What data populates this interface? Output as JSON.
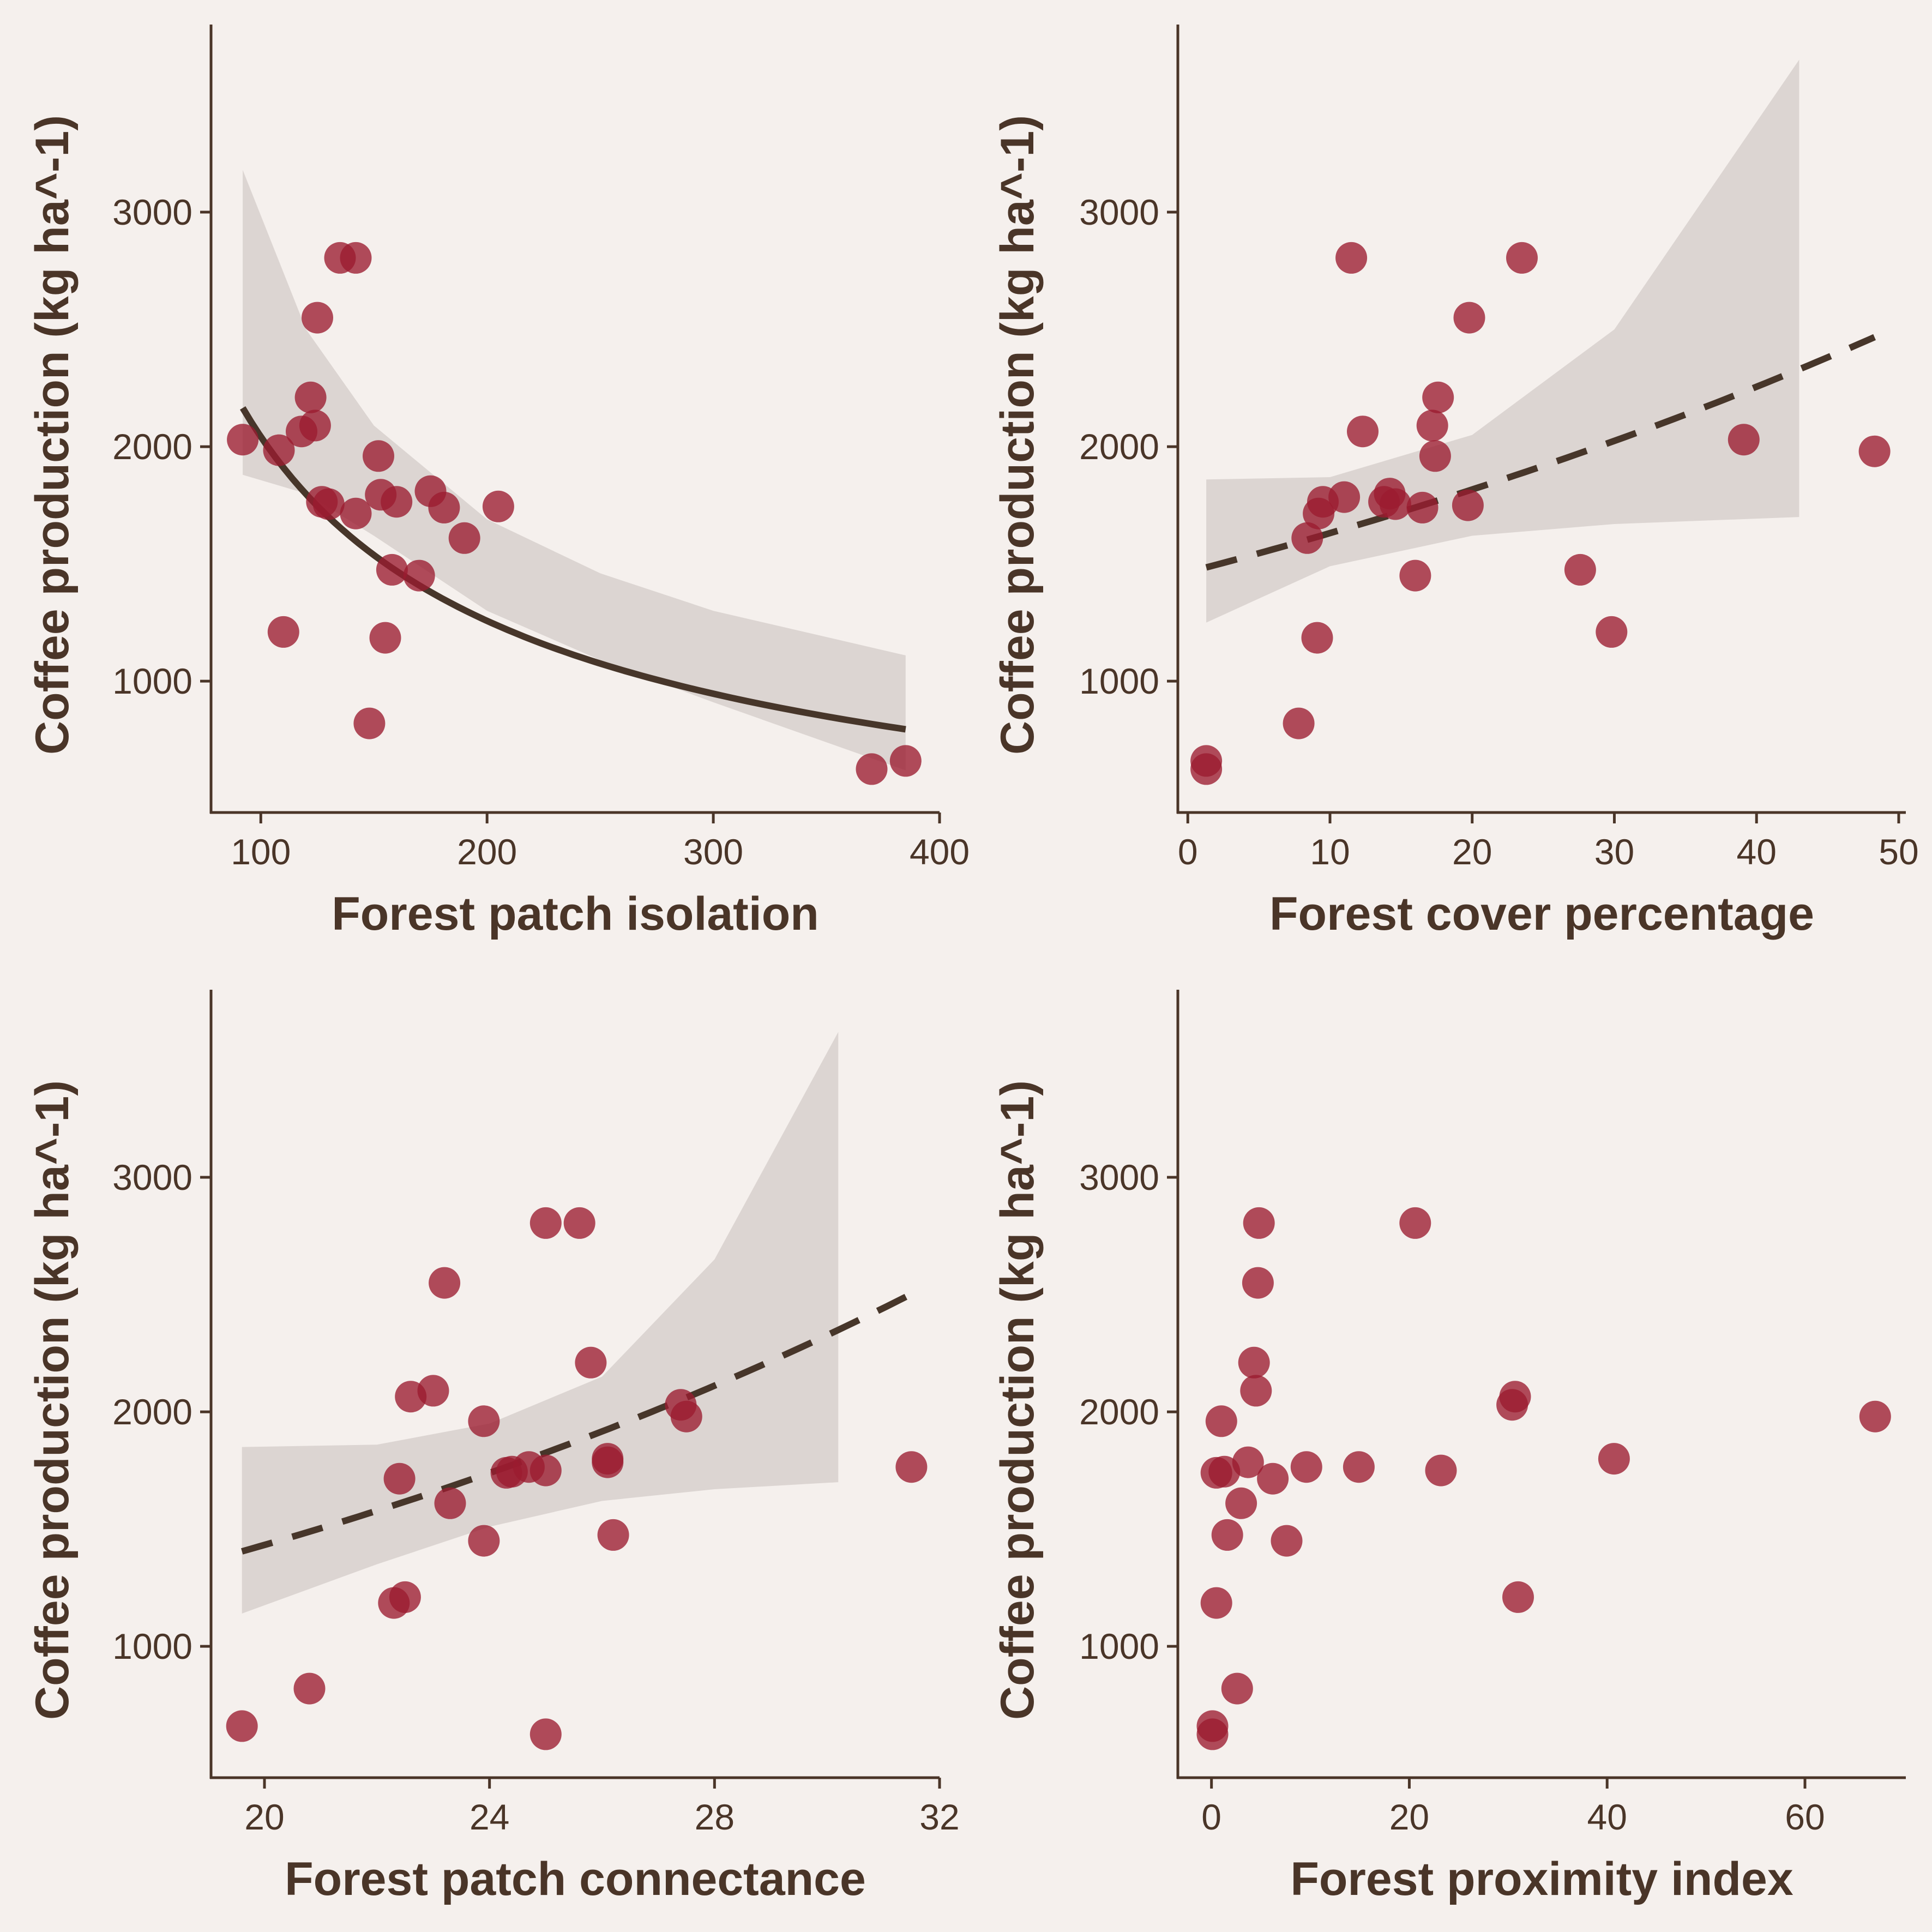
{
  "style": {
    "background": "#f5f0ed",
    "axis_color": "#4a3528",
    "point_color": "#9b1b30",
    "line_color": "#47362a",
    "ribbon_color": "#dcd5d2"
  },
  "chart_data": [
    {
      "type": "scatter",
      "xlabel": "Forest patch isolation",
      "ylabel": "Coffee production (kg ha^-1)",
      "xlim": [
        78,
        400
      ],
      "ylim": [
        440,
        3800
      ],
      "xticks": [
        100,
        200,
        300,
        400
      ],
      "xtick_labels": [
        "100",
        "200",
        "300",
        "400"
      ],
      "yticks": [
        1000,
        2000,
        3000
      ],
      "ytick_labels": [
        "1000",
        "2000",
        "3000"
      ],
      "fit": {
        "style": "solid",
        "model": "power",
        "x_range": [
          92,
          385
        ],
        "a": 51300,
        "b": -0.7
      },
      "ribbon": {
        "x": [
          92,
          120,
          150,
          200,
          250,
          300,
          385
        ],
        "upper": [
          3180,
          2500,
          2090,
          1690,
          1460,
          1300,
          1110
        ],
        "lower": [
          1880,
          1800,
          1620,
          1300,
          1090,
          910,
          620
        ]
      },
      "points": [
        {
          "x": 92,
          "y": 2030
        },
        {
          "x": 108,
          "y": 1985
        },
        {
          "x": 110,
          "y": 1210
        },
        {
          "x": 118,
          "y": 2065
        },
        {
          "x": 122,
          "y": 2210
        },
        {
          "x": 124,
          "y": 2090
        },
        {
          "x": 125,
          "y": 2550
        },
        {
          "x": 127,
          "y": 1765
        },
        {
          "x": 130,
          "y": 1755
        },
        {
          "x": 135,
          "y": 2805
        },
        {
          "x": 142,
          "y": 2805
        },
        {
          "x": 142,
          "y": 1715
        },
        {
          "x": 148,
          "y": 820
        },
        {
          "x": 152,
          "y": 1960
        },
        {
          "x": 153,
          "y": 1795
        },
        {
          "x": 155,
          "y": 1185
        },
        {
          "x": 158,
          "y": 1475
        },
        {
          "x": 160,
          "y": 1765
        },
        {
          "x": 170,
          "y": 1450
        },
        {
          "x": 175,
          "y": 1810
        },
        {
          "x": 181,
          "y": 1740
        },
        {
          "x": 190,
          "y": 1610
        },
        {
          "x": 205,
          "y": 1745
        },
        {
          "x": 370,
          "y": 625
        },
        {
          "x": 385,
          "y": 660
        }
      ]
    },
    {
      "type": "scatter",
      "xlabel": "Forest cover percentage",
      "ylabel": "Coffee production (kg ha^-1)",
      "xlim": [
        -0.7,
        50.5
      ],
      "ylim": [
        440,
        3800
      ],
      "xticks": [
        0,
        10,
        20,
        30,
        40,
        50
      ],
      "xtick_labels": [
        "0",
        "10",
        "20",
        "30",
        "40",
        "50"
      ],
      "yticks": [
        1000,
        2000,
        3000
      ],
      "ytick_labels": [
        "1000",
        "2000",
        "3000"
      ],
      "fit": {
        "style": "dashed",
        "model": "exp",
        "x_range": [
          1.3,
          48.3
        ],
        "a": 1485,
        "b": 0.0108
      },
      "ribbon": {
        "x": [
          1.3,
          10,
          20,
          30,
          43
        ],
        "upper": [
          1860,
          1870,
          2050,
          2500,
          3650
        ],
        "lower": [
          1250,
          1490,
          1620,
          1670,
          1700
        ]
      },
      "points": [
        {
          "x": 1.3,
          "y": 660
        },
        {
          "x": 1.3,
          "y": 625
        },
        {
          "x": 7.8,
          "y": 820
        },
        {
          "x": 8.4,
          "y": 1610
        },
        {
          "x": 9.1,
          "y": 1185
        },
        {
          "x": 9.2,
          "y": 1715
        },
        {
          "x": 9.5,
          "y": 1765
        },
        {
          "x": 11.0,
          "y": 1785
        },
        {
          "x": 11.5,
          "y": 2805
        },
        {
          "x": 12.3,
          "y": 2065
        },
        {
          "x": 13.8,
          "y": 1765
        },
        {
          "x": 14.2,
          "y": 1800
        },
        {
          "x": 14.6,
          "y": 1755
        },
        {
          "x": 16.0,
          "y": 1450
        },
        {
          "x": 16.5,
          "y": 1740
        },
        {
          "x": 17.2,
          "y": 2090
        },
        {
          "x": 17.4,
          "y": 1960
        },
        {
          "x": 17.6,
          "y": 2210
        },
        {
          "x": 19.7,
          "y": 1750
        },
        {
          "x": 19.8,
          "y": 2550
        },
        {
          "x": 23.5,
          "y": 2805
        },
        {
          "x": 27.6,
          "y": 1475
        },
        {
          "x": 29.8,
          "y": 1210
        },
        {
          "x": 39.1,
          "y": 2030
        },
        {
          "x": 48.3,
          "y": 1980
        }
      ]
    },
    {
      "type": "scatter",
      "xlabel": "Forest patch connectance",
      "ylabel": "Coffee production (kg ha^-1)",
      "xlim": [
        19.05,
        32.0
      ],
      "ylim": [
        440,
        3800
      ],
      "xticks": [
        20,
        24,
        28,
        32
      ],
      "xtick_labels": [
        "20",
        "24",
        "28",
        "32"
      ],
      "yticks": [
        1000,
        2000,
        3000
      ],
      "ytick_labels": [
        "1000",
        "2000",
        "3000"
      ],
      "fit": {
        "style": "dashed",
        "model": "exp",
        "x_range": [
          19.6,
          31.5
        ],
        "a": 1405,
        "b": 0.0485
      },
      "ribbon": {
        "x": [
          19.6,
          22,
          24,
          26,
          28,
          30.2
        ],
        "upper": [
          1850,
          1860,
          1950,
          2150,
          2650,
          3620
        ],
        "lower": [
          1140,
          1350,
          1510,
          1620,
          1670,
          1700
        ]
      },
      "points": [
        {
          "x": 19.6,
          "y": 660
        },
        {
          "x": 20.8,
          "y": 820
        },
        {
          "x": 22.3,
          "y": 1185
        },
        {
          "x": 22.5,
          "y": 1210
        },
        {
          "x": 22.4,
          "y": 1715
        },
        {
          "x": 22.6,
          "y": 2065
        },
        {
          "x": 23.0,
          "y": 2090
        },
        {
          "x": 23.2,
          "y": 2550
        },
        {
          "x": 23.3,
          "y": 1610
        },
        {
          "x": 23.9,
          "y": 1960
        },
        {
          "x": 23.9,
          "y": 1450
        },
        {
          "x": 24.3,
          "y": 1740
        },
        {
          "x": 24.4,
          "y": 1745
        },
        {
          "x": 24.7,
          "y": 1765
        },
        {
          "x": 25.0,
          "y": 1750
        },
        {
          "x": 25.0,
          "y": 2805
        },
        {
          "x": 25.0,
          "y": 625
        },
        {
          "x": 25.6,
          "y": 2805
        },
        {
          "x": 25.8,
          "y": 2210
        },
        {
          "x": 26.1,
          "y": 1800
        },
        {
          "x": 26.1,
          "y": 1785
        },
        {
          "x": 26.2,
          "y": 1475
        },
        {
          "x": 27.4,
          "y": 2030
        },
        {
          "x": 27.5,
          "y": 1980
        },
        {
          "x": 31.5,
          "y": 1765
        }
      ]
    },
    {
      "type": "scatter",
      "xlabel": "Forest proximity index",
      "ylabel": "Coffee production (kg ha^-1)",
      "xlim": [
        -3.4,
        70.2
      ],
      "ylim": [
        440,
        3800
      ],
      "xticks": [
        0,
        20,
        40,
        60
      ],
      "xtick_labels": [
        "0",
        "20",
        "40",
        "60"
      ],
      "yticks": [
        1000,
        2000,
        3000
      ],
      "ytick_labels": [
        "1000",
        "2000",
        "3000"
      ],
      "points": [
        {
          "x": 0.1,
          "y": 660
        },
        {
          "x": 0.1,
          "y": 625
        },
        {
          "x": 0.5,
          "y": 1185
        },
        {
          "x": 0.5,
          "y": 1740
        },
        {
          "x": 1.0,
          "y": 1960
        },
        {
          "x": 1.3,
          "y": 1745
        },
        {
          "x": 1.6,
          "y": 1475
        },
        {
          "x": 2.6,
          "y": 820
        },
        {
          "x": 3.0,
          "y": 1610
        },
        {
          "x": 3.7,
          "y": 1785
        },
        {
          "x": 4.3,
          "y": 2210
        },
        {
          "x": 4.5,
          "y": 2090
        },
        {
          "x": 4.7,
          "y": 2550
        },
        {
          "x": 4.8,
          "y": 2805
        },
        {
          "x": 6.2,
          "y": 1715
        },
        {
          "x": 7.6,
          "y": 1450
        },
        {
          "x": 9.6,
          "y": 1765
        },
        {
          "x": 14.9,
          "y": 1765
        },
        {
          "x": 20.6,
          "y": 2805
        },
        {
          "x": 23.2,
          "y": 1750
        },
        {
          "x": 30.4,
          "y": 2030
        },
        {
          "x": 30.7,
          "y": 2065
        },
        {
          "x": 31.0,
          "y": 1210
        },
        {
          "x": 40.7,
          "y": 1800
        },
        {
          "x": 67.1,
          "y": 1980
        }
      ]
    }
  ]
}
